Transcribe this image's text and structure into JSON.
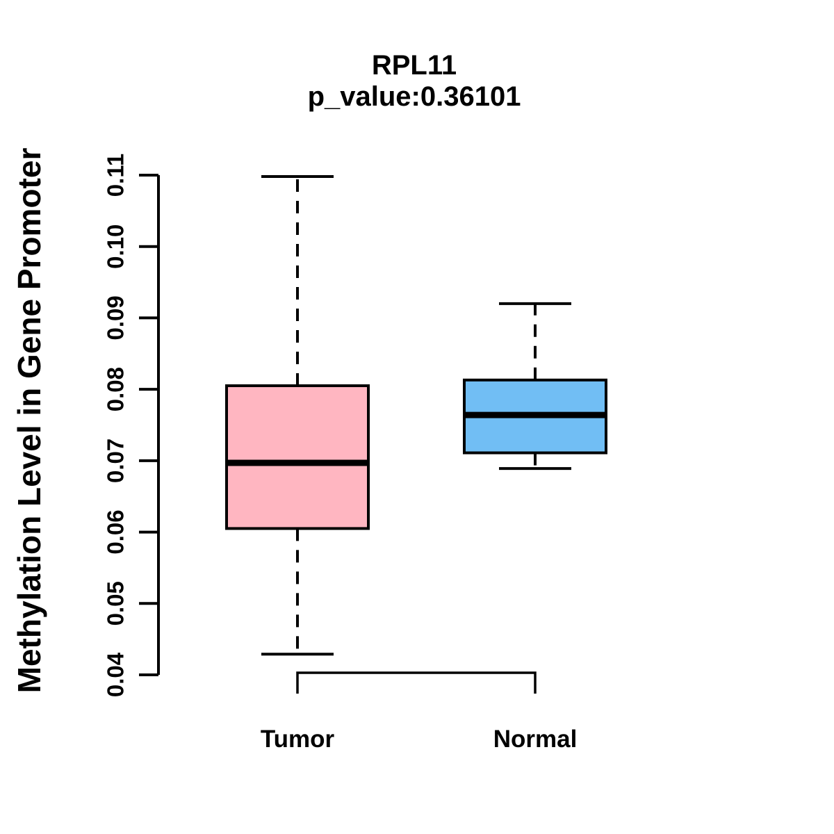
{
  "title": {
    "line1": "RPL11",
    "line2": "p_value:0.36101"
  },
  "ylabel": "Methylation Level in Gene Promoter",
  "colors": {
    "tumor_fill": "#FFB6C1",
    "normal_fill": "#71BEF4",
    "stroke": "#000000",
    "background": "#FFFFFF"
  },
  "chart_data": {
    "type": "boxplot",
    "title": "RPL11",
    "subtitle": "p_value:0.36101",
    "ylabel": "Methylation Level in Gene Promoter",
    "xlabel": "",
    "categories": [
      "Tumor",
      "Normal"
    ],
    "series": [
      {
        "name": "Tumor",
        "color": "#FFB6C1",
        "whisker_low": 0.0429,
        "q1": 0.0605,
        "median": 0.0697,
        "q3": 0.0805,
        "whisker_high": 0.1098
      },
      {
        "name": "Normal",
        "color": "#71BEF4",
        "whisker_low": 0.0689,
        "q1": 0.0711,
        "median": 0.0764,
        "q3": 0.0813,
        "whisker_high": 0.092
      }
    ],
    "ylim": [
      0.04,
      0.11
    ],
    "yticks": [
      0.11,
      0.1,
      0.09,
      0.08,
      0.07,
      0.06,
      0.05,
      0.04
    ],
    "ytick_labels": [
      "0.11",
      "0.10",
      "0.09",
      "0.08",
      "0.07",
      "0.06",
      "0.05",
      "0.04"
    ],
    "grid": false,
    "legend": "none",
    "whisker_style": "dashed"
  }
}
